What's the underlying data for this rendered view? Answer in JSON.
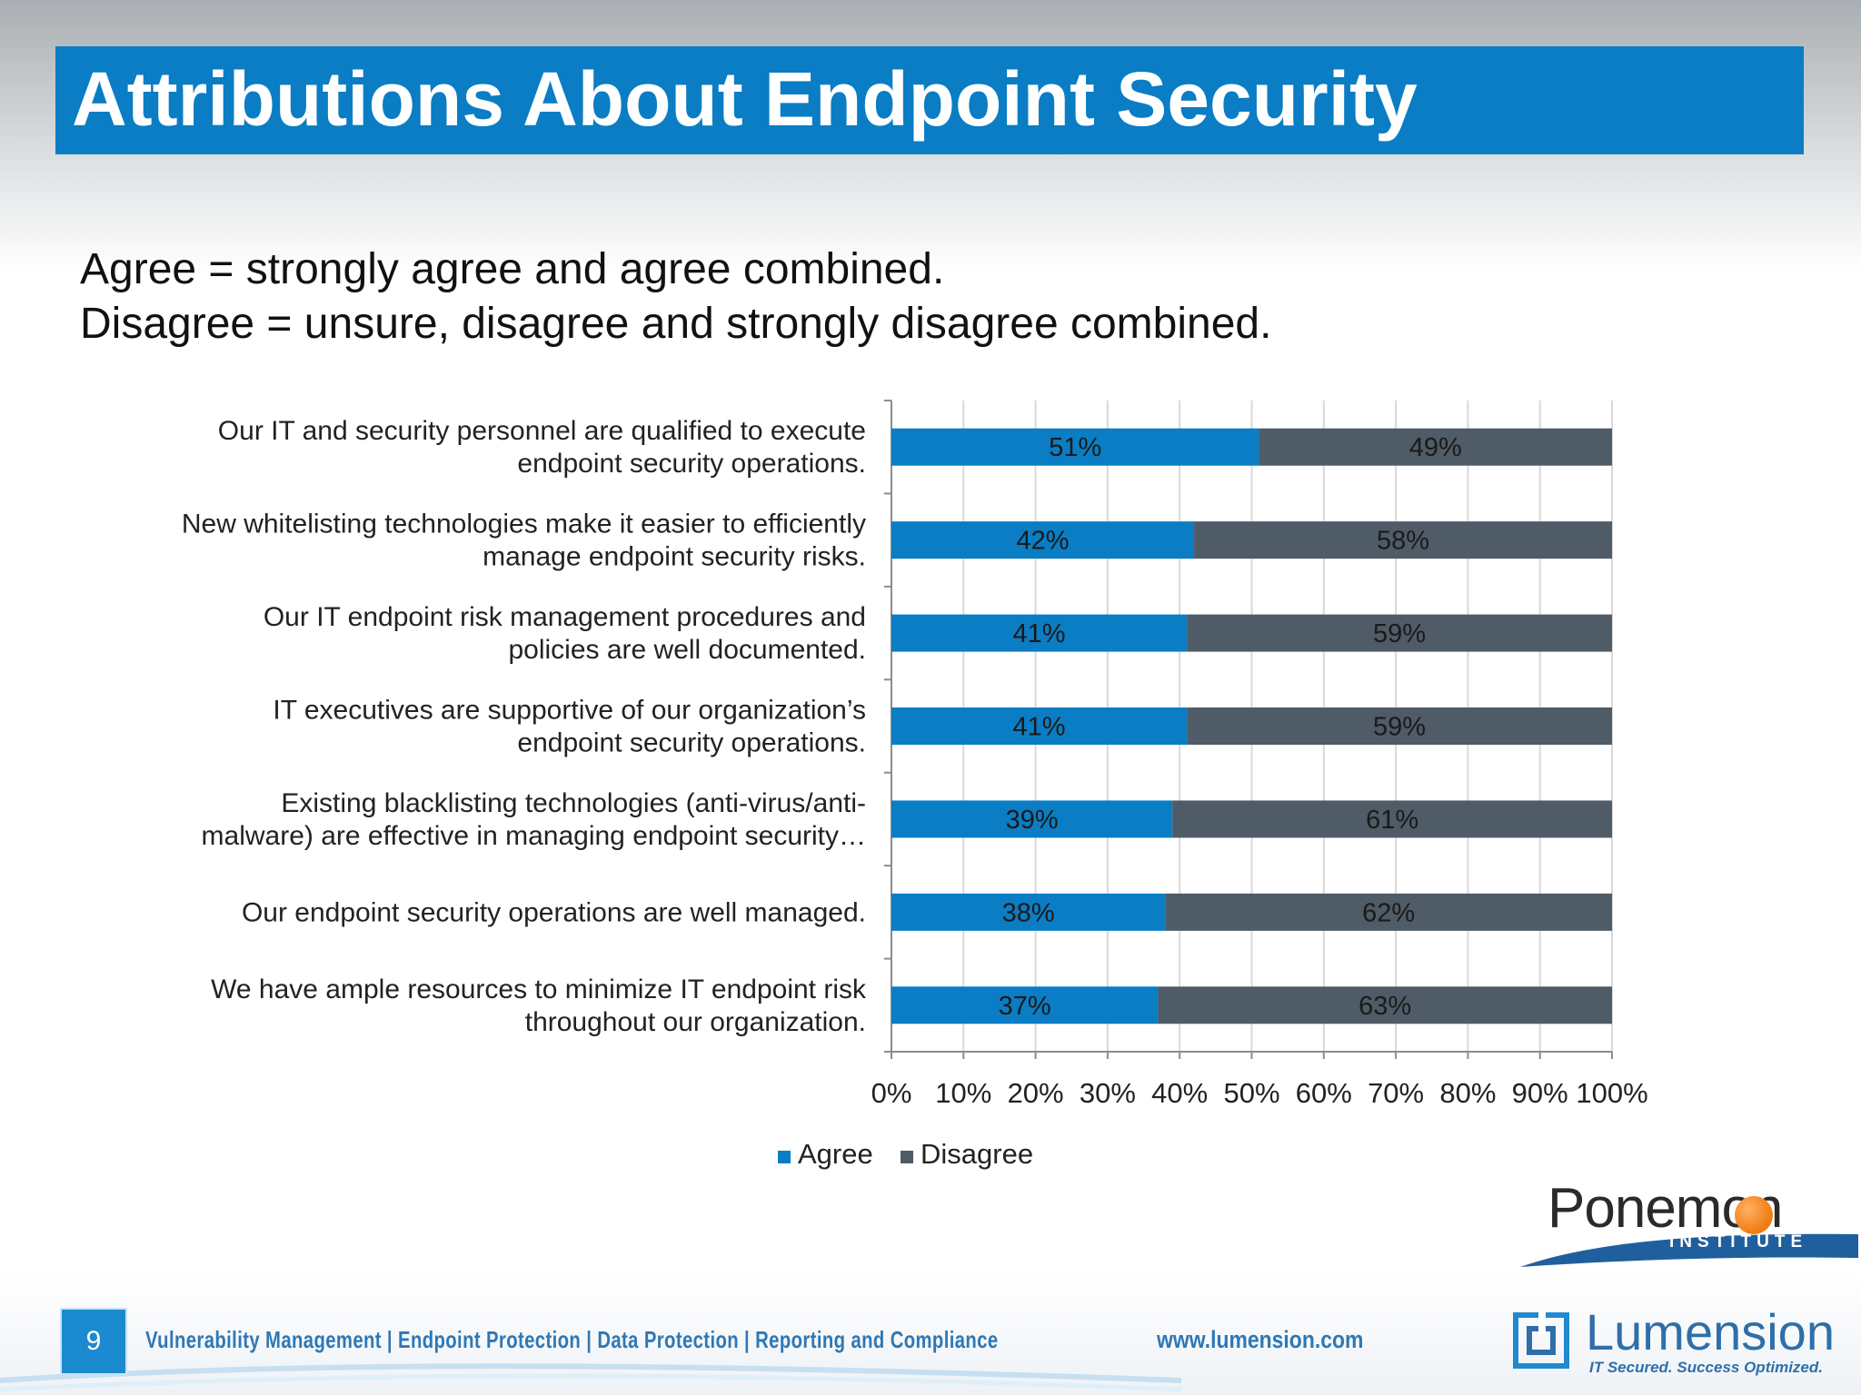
{
  "title": "Attributions About Endpoint Security",
  "subtitle_lines": [
    "Agree = strongly agree and agree combined.",
    "Disagree = unsure, disagree and strongly disagree combined."
  ],
  "chart_data": {
    "type": "bar",
    "orientation": "horizontal",
    "stacked": true,
    "title": "",
    "xlabel": "",
    "ylabel": "",
    "xlim": [
      0,
      100
    ],
    "xticks": [
      "0%",
      "10%",
      "20%",
      "30%",
      "40%",
      "50%",
      "60%",
      "70%",
      "80%",
      "90%",
      "100%"
    ],
    "grid": true,
    "legend_position": "bottom",
    "categories": [
      [
        "Our IT and security personnel are qualified to execute",
        "endpoint security operations."
      ],
      [
        "New whitelisting technologies make it easier to efficiently",
        "manage endpoint security risks."
      ],
      [
        "Our IT endpoint risk management procedures and",
        "policies are well documented."
      ],
      [
        "IT executives are supportive of our organization’s",
        "endpoint security operations."
      ],
      [
        "Existing blacklisting technologies (anti-virus/anti-",
        "malware) are effective in managing endpoint security…"
      ],
      [
        "Our endpoint security operations are well managed."
      ],
      [
        "We have ample resources to minimize IT endpoint risk",
        "throughout our organization."
      ]
    ],
    "series": [
      {
        "name": "Agree",
        "color": "#0a7dc4",
        "values": [
          51,
          42,
          41,
          41,
          39,
          38,
          37
        ],
        "labels": [
          "51%",
          "42%",
          "41%",
          "41%",
          "39%",
          "38%",
          "37%"
        ]
      },
      {
        "name": "Disagree",
        "color": "#4f5b66",
        "values": [
          49,
          58,
          59,
          59,
          61,
          62,
          63
        ],
        "labels": [
          "49%",
          "58%",
          "59%",
          "59%",
          "61%",
          "62%",
          "63%"
        ]
      }
    ]
  },
  "logos": {
    "ponemon": {
      "name": "Ponemon",
      "sub": "INSTITUTE",
      "accent": "#f07a10"
    },
    "lumension": {
      "name": "Lumension",
      "tagline": "IT Secured. Success Optimized."
    }
  },
  "footer": {
    "slide_number": "9",
    "nav_text": "Vulnerability Management | Endpoint Protection | Data Protection | Reporting and Compliance",
    "url": "www.lumension.com"
  }
}
